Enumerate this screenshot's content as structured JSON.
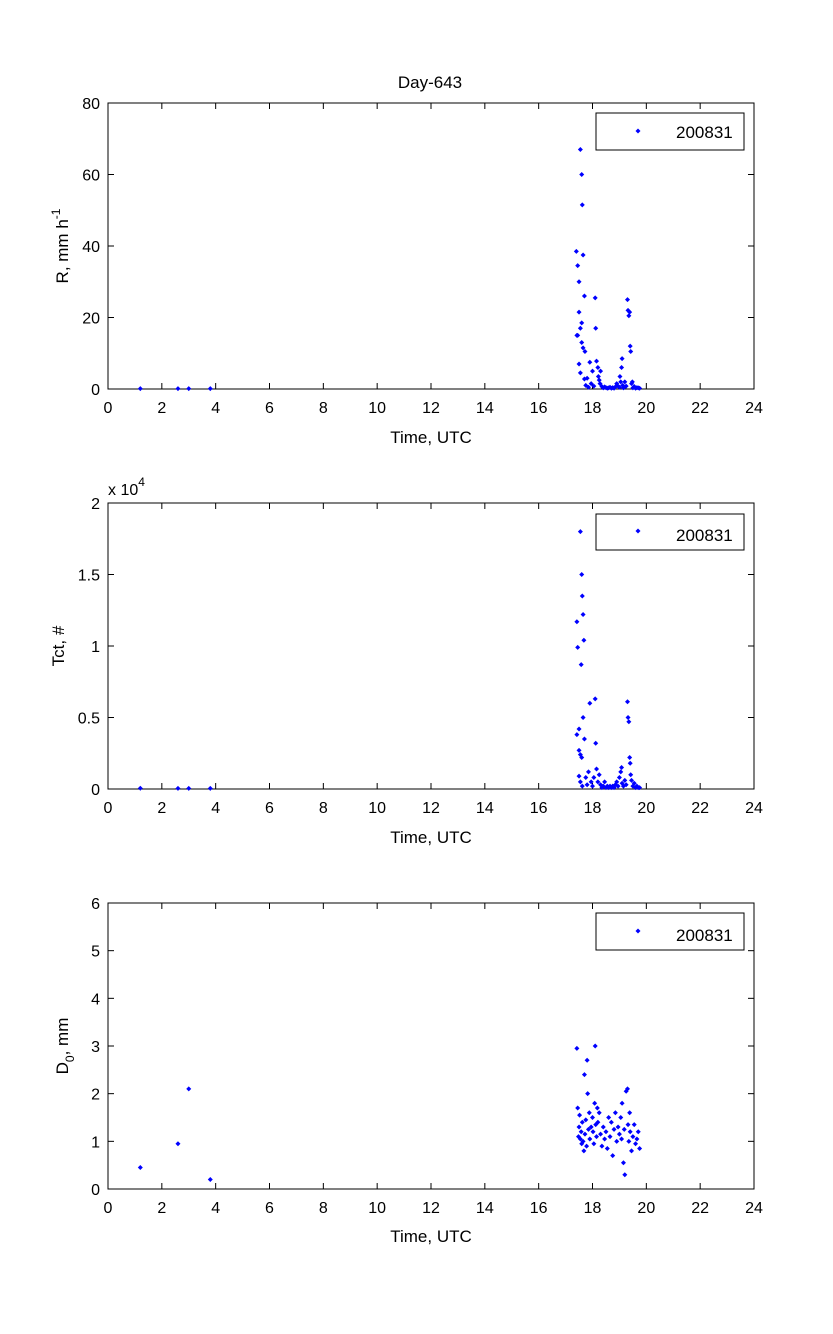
{
  "figure": {
    "title": "Day-643",
    "marker_color": "#0000ff"
  },
  "chart_data": [
    {
      "type": "scatter",
      "title": "Day-643",
      "xlabel": "Time, UTC",
      "ylabel": "R, mm h",
      "ylabel_superscript": "-1",
      "xlim": [
        0,
        24
      ],
      "ylim": [
        0,
        80
      ],
      "xticks": [
        0,
        2,
        4,
        6,
        8,
        10,
        12,
        14,
        16,
        18,
        20,
        22,
        24
      ],
      "yticks": [
        0,
        20,
        40,
        60,
        80
      ],
      "grid": false,
      "legend_position": "top-right",
      "series": [
        {
          "name": "200831",
          "color": "#0000ff",
          "points": [
            [
              1.2,
              0.1
            ],
            [
              2.6,
              0.1
            ],
            [
              3.0,
              0.1
            ],
            [
              3.8,
              0.1
            ],
            [
              17.4,
              38.5
            ],
            [
              17.45,
              34.5
            ],
            [
              17.5,
              21.5
            ],
            [
              17.42,
              15.0
            ],
            [
              17.55,
              67.0
            ],
            [
              17.6,
              60.0
            ],
            [
              17.62,
              51.5
            ],
            [
              17.5,
              30.0
            ],
            [
              17.65,
              37.5
            ],
            [
              17.7,
              26.0
            ],
            [
              17.6,
              18.5
            ],
            [
              17.55,
              17.0
            ],
            [
              17.45,
              15.0
            ],
            [
              17.6,
              13.0
            ],
            [
              17.65,
              11.5
            ],
            [
              17.5,
              7.0
            ],
            [
              17.55,
              4.5
            ],
            [
              17.7,
              2.8
            ],
            [
              17.72,
              10.5
            ],
            [
              17.8,
              3.0
            ],
            [
              17.75,
              1.0
            ],
            [
              17.85,
              0.5
            ],
            [
              17.9,
              7.5
            ],
            [
              17.95,
              1.5
            ],
            [
              18.0,
              5.0
            ],
            [
              18.05,
              0.8
            ],
            [
              18.1,
              25.5
            ],
            [
              18.12,
              17.0
            ],
            [
              18.15,
              7.8
            ],
            [
              18.2,
              6.0
            ],
            [
              18.22,
              3.5
            ],
            [
              18.25,
              2.5
            ],
            [
              18.28,
              1.5
            ],
            [
              18.3,
              5.0
            ],
            [
              18.35,
              0.7
            ],
            [
              18.4,
              0.3
            ],
            [
              18.45,
              0.6
            ],
            [
              18.5,
              0.4
            ],
            [
              18.55,
              0.2
            ],
            [
              18.6,
              0.3
            ],
            [
              18.65,
              0.5
            ],
            [
              18.7,
              0.2
            ],
            [
              18.75,
              0.4
            ],
            [
              18.8,
              0.2
            ],
            [
              18.85,
              0.6
            ],
            [
              18.9,
              1.5
            ],
            [
              18.95,
              0.8
            ],
            [
              19.0,
              0.5
            ],
            [
              19.02,
              3.5
            ],
            [
              19.05,
              2.0
            ],
            [
              19.08,
              6.0
            ],
            [
              19.1,
              8.5
            ],
            [
              19.12,
              1.0
            ],
            [
              19.15,
              0.3
            ],
            [
              19.18,
              0.5
            ],
            [
              19.2,
              2.0
            ],
            [
              19.25,
              0.8
            ],
            [
              19.3,
              25.0
            ],
            [
              19.32,
              22.0
            ],
            [
              19.35,
              20.5
            ],
            [
              19.38,
              21.5
            ],
            [
              19.4,
              12.0
            ],
            [
              19.42,
              10.5
            ],
            [
              19.45,
              1.5
            ],
            [
              19.48,
              2.0
            ],
            [
              19.5,
              0.3
            ],
            [
              19.55,
              0.7
            ],
            [
              19.6,
              0.2
            ],
            [
              19.65,
              0.4
            ],
            [
              19.7,
              0.3
            ],
            [
              19.75,
              0.2
            ]
          ]
        }
      ]
    },
    {
      "type": "scatter",
      "title": "",
      "xlabel": "Time, UTC",
      "ylabel": "Tct, #",
      "scale_label": "x 10",
      "scale_exponent": "4",
      "xlim": [
        0,
        24
      ],
      "ylim": [
        0,
        2
      ],
      "xticks": [
        0,
        2,
        4,
        6,
        8,
        10,
        12,
        14,
        16,
        18,
        20,
        22,
        24
      ],
      "yticks": [
        0,
        0.5,
        1,
        1.5,
        2
      ],
      "grid": false,
      "legend_position": "top-right",
      "series": [
        {
          "name": "200831",
          "color": "#0000ff",
          "points": [
            [
              1.2,
              0.005
            ],
            [
              2.6,
              0.004
            ],
            [
              3.0,
              0.004
            ],
            [
              3.8,
              0.004
            ],
            [
              17.42,
              1.17
            ],
            [
              17.45,
              0.99
            ],
            [
              17.5,
              0.42
            ],
            [
              17.42,
              0.38
            ],
            [
              17.55,
              1.8
            ],
            [
              17.6,
              1.5
            ],
            [
              17.62,
              1.35
            ],
            [
              17.65,
              1.22
            ],
            [
              17.68,
              1.04
            ],
            [
              17.58,
              0.87
            ],
            [
              17.5,
              0.27
            ],
            [
              17.55,
              0.24
            ],
            [
              17.6,
              0.22
            ],
            [
              17.5,
              0.09
            ],
            [
              17.55,
              0.05
            ],
            [
              17.62,
              0.02
            ],
            [
              17.65,
              0.5
            ],
            [
              17.7,
              0.35
            ],
            [
              17.75,
              0.08
            ],
            [
              17.8,
              0.03
            ],
            [
              17.85,
              0.12
            ],
            [
              17.9,
              0.6
            ],
            [
              17.95,
              0.05
            ],
            [
              18.0,
              0.02
            ],
            [
              18.05,
              0.08
            ],
            [
              18.1,
              0.63
            ],
            [
              18.12,
              0.32
            ],
            [
              18.15,
              0.14
            ],
            [
              18.2,
              0.05
            ],
            [
              18.25,
              0.1
            ],
            [
              18.3,
              0.03
            ],
            [
              18.35,
              0.01
            ],
            [
              18.4,
              0.02
            ],
            [
              18.45,
              0.05
            ],
            [
              18.5,
              0.01
            ],
            [
              18.55,
              0.02
            ],
            [
              18.6,
              0.01
            ],
            [
              18.65,
              0.02
            ],
            [
              18.7,
              0.01
            ],
            [
              18.75,
              0.02
            ],
            [
              18.8,
              0.01
            ],
            [
              18.85,
              0.03
            ],
            [
              18.9,
              0.05
            ],
            [
              18.95,
              0.02
            ],
            [
              19.0,
              0.08
            ],
            [
              19.05,
              0.12
            ],
            [
              19.08,
              0.15
            ],
            [
              19.1,
              0.04
            ],
            [
              19.15,
              0.02
            ],
            [
              19.2,
              0.06
            ],
            [
              19.25,
              0.03
            ],
            [
              19.3,
              0.61
            ],
            [
              19.32,
              0.5
            ],
            [
              19.35,
              0.47
            ],
            [
              19.38,
              0.22
            ],
            [
              19.4,
              0.18
            ],
            [
              19.42,
              0.1
            ],
            [
              19.45,
              0.06
            ],
            [
              19.5,
              0.02
            ],
            [
              19.55,
              0.04
            ],
            [
              19.6,
              0.01
            ],
            [
              19.65,
              0.02
            ],
            [
              19.7,
              0.01
            ],
            [
              19.75,
              0.01
            ]
          ]
        }
      ]
    },
    {
      "type": "scatter",
      "title": "",
      "xlabel": "Time, UTC",
      "ylabel": "D",
      "ylabel_subscript": "0",
      "ylabel_suffix": ", mm",
      "xlim": [
        0,
        24
      ],
      "ylim": [
        0,
        6
      ],
      "xticks": [
        0,
        2,
        4,
        6,
        8,
        10,
        12,
        14,
        16,
        18,
        20,
        22,
        24
      ],
      "yticks": [
        0,
        1,
        2,
        3,
        4,
        5,
        6
      ],
      "grid": false,
      "legend_position": "top-right",
      "series": [
        {
          "name": "200831",
          "color": "#0000ff",
          "points": [
            [
              1.2,
              0.45
            ],
            [
              2.6,
              0.95
            ],
            [
              3.0,
              2.1
            ],
            [
              3.8,
              0.2
            ],
            [
              17.42,
              2.95
            ],
            [
              17.45,
              1.7
            ],
            [
              17.48,
              1.1
            ],
            [
              17.5,
              1.3
            ],
            [
              17.52,
              1.55
            ],
            [
              17.55,
              1.05
            ],
            [
              17.58,
              1.2
            ],
            [
              17.6,
              0.95
            ],
            [
              17.62,
              1.4
            ],
            [
              17.65,
              1.0
            ],
            [
              17.68,
              0.8
            ],
            [
              17.7,
              2.4
            ],
            [
              17.72,
              1.15
            ],
            [
              17.75,
              1.45
            ],
            [
              17.78,
              0.9
            ],
            [
              17.8,
              2.7
            ],
            [
              17.82,
              2.0
            ],
            [
              17.85,
              1.25
            ],
            [
              17.88,
              1.6
            ],
            [
              17.9,
              1.05
            ],
            [
              17.95,
              1.3
            ],
            [
              18.0,
              1.5
            ],
            [
              18.02,
              1.2
            ],
            [
              18.05,
              0.95
            ],
            [
              18.08,
              1.8
            ],
            [
              18.1,
              3.0
            ],
            [
              18.12,
              1.35
            ],
            [
              18.15,
              1.1
            ],
            [
              18.18,
              1.7
            ],
            [
              18.2,
              1.4
            ],
            [
              18.25,
              1.6
            ],
            [
              18.3,
              1.15
            ],
            [
              18.35,
              0.9
            ],
            [
              18.4,
              1.3
            ],
            [
              18.45,
              1.05
            ],
            [
              18.5,
              1.2
            ],
            [
              18.55,
              0.85
            ],
            [
              18.6,
              1.5
            ],
            [
              18.65,
              1.1
            ],
            [
              18.7,
              1.4
            ],
            [
              18.75,
              0.7
            ],
            [
              18.8,
              1.25
            ],
            [
              18.85,
              1.6
            ],
            [
              18.9,
              1.0
            ],
            [
              18.95,
              1.3
            ],
            [
              19.0,
              1.15
            ],
            [
              19.05,
              1.5
            ],
            [
              19.08,
              1.05
            ],
            [
              19.1,
              1.8
            ],
            [
              19.15,
              0.55
            ],
            [
              19.18,
              1.25
            ],
            [
              19.2,
              0.3
            ],
            [
              19.25,
              2.05
            ],
            [
              19.3,
              2.1
            ],
            [
              19.32,
              1.35
            ],
            [
              19.35,
              1.0
            ],
            [
              19.38,
              1.6
            ],
            [
              19.4,
              1.2
            ],
            [
              19.45,
              0.8
            ],
            [
              19.5,
              1.1
            ],
            [
              19.55,
              1.35
            ],
            [
              19.6,
              0.95
            ],
            [
              19.65,
              1.05
            ],
            [
              19.7,
              1.2
            ],
            [
              19.75,
              0.85
            ]
          ]
        }
      ]
    }
  ]
}
